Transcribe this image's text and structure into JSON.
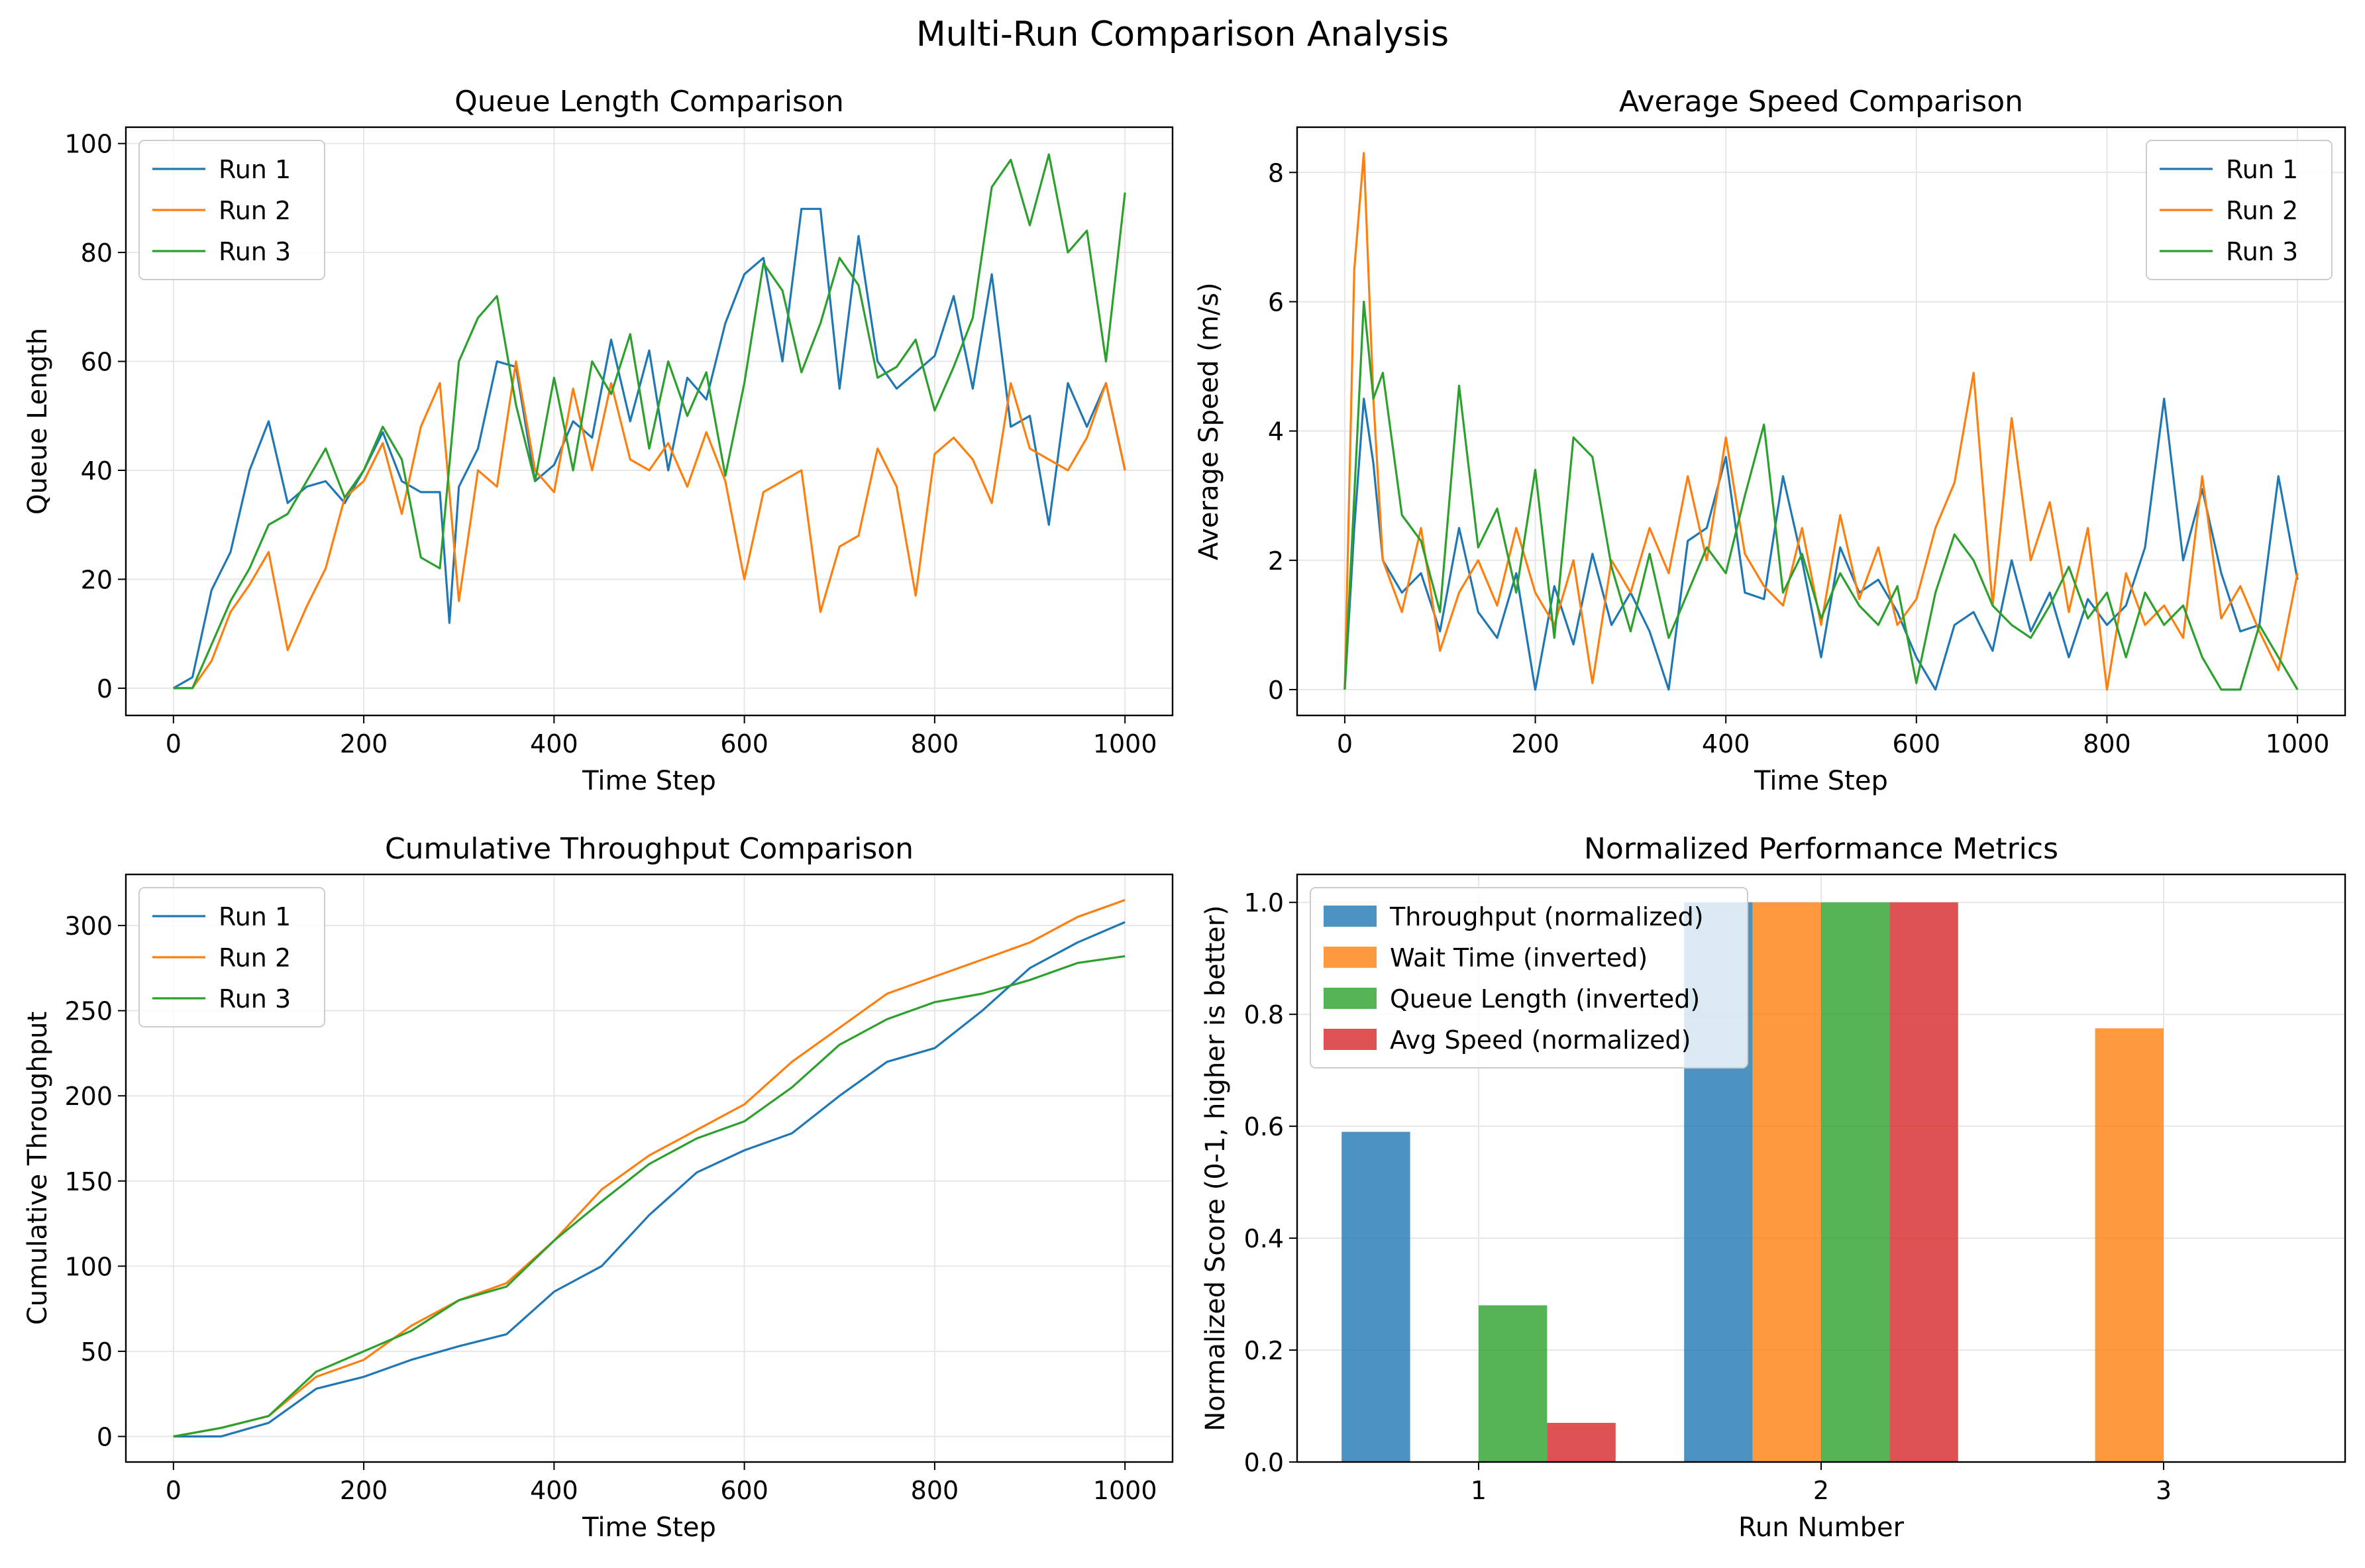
{
  "suptitle": "Multi-Run Comparison Analysis",
  "colors": {
    "run1": "#1f77b4",
    "run2": "#ff7f0e",
    "run3": "#2ca02c",
    "run4": "#d62728",
    "grid": "#e6e6e6"
  },
  "chart_data": [
    {
      "id": "queue",
      "type": "line",
      "title": "Queue Length Comparison",
      "xlabel": "Time Step",
      "ylabel": "Queue Length",
      "xlim": [
        -50,
        1050
      ],
      "ylim": [
        -5,
        103
      ],
      "xticks": [
        0,
        200,
        400,
        600,
        800,
        1000
      ],
      "yticks": [
        0,
        20,
        40,
        60,
        80,
        100
      ],
      "legend": "top-left",
      "grid": true,
      "series": [
        {
          "name": "Run 1",
          "color": "#1f77b4",
          "x": [
            0,
            20,
            40,
            60,
            80,
            100,
            120,
            140,
            160,
            180,
            200,
            220,
            240,
            260,
            280,
            290,
            300,
            320,
            340,
            360,
            380,
            400,
            420,
            440,
            460,
            480,
            500,
            520,
            540,
            560,
            580,
            600,
            620,
            640,
            660,
            680,
            700,
            720,
            740,
            760,
            780,
            800,
            820,
            840,
            860,
            880,
            900,
            920,
            940,
            960,
            980,
            1000
          ],
          "y": [
            0,
            2,
            18,
            25,
            40,
            49,
            34,
            37,
            38,
            34,
            40,
            47,
            38,
            36,
            36,
            12,
            37,
            44,
            60,
            59,
            38,
            41,
            49,
            46,
            64,
            49,
            62,
            40,
            57,
            53,
            67,
            76,
            79,
            60,
            88,
            88,
            55,
            83,
            60,
            55,
            58,
            61,
            72,
            55,
            76,
            48,
            50,
            30,
            56,
            48,
            56,
            40
          ]
        },
        {
          "name": "Run 2",
          "color": "#ff7f0e",
          "x": [
            0,
            20,
            40,
            60,
            80,
            100,
            120,
            140,
            160,
            180,
            200,
            220,
            240,
            260,
            280,
            300,
            320,
            340,
            360,
            380,
            400,
            420,
            440,
            460,
            480,
            500,
            520,
            540,
            560,
            580,
            600,
            620,
            640,
            660,
            680,
            700,
            720,
            740,
            760,
            780,
            800,
            820,
            840,
            860,
            880,
            900,
            920,
            940,
            960,
            980,
            1000
          ],
          "y": [
            0,
            0,
            5,
            14,
            19,
            25,
            7,
            15,
            22,
            35,
            38,
            45,
            32,
            48,
            56,
            16,
            40,
            37,
            60,
            40,
            36,
            55,
            40,
            56,
            42,
            40,
            45,
            37,
            47,
            38,
            20,
            36,
            38,
            40,
            14,
            26,
            28,
            44,
            37,
            17,
            43,
            46,
            42,
            34,
            56,
            44,
            42,
            40,
            46,
            56,
            40
          ]
        },
        {
          "name": "Run 3",
          "color": "#2ca02c",
          "x": [
            0,
            20,
            40,
            60,
            80,
            100,
            120,
            140,
            160,
            180,
            200,
            220,
            240,
            260,
            280,
            300,
            320,
            340,
            360,
            380,
            400,
            420,
            440,
            460,
            480,
            500,
            520,
            540,
            560,
            580,
            600,
            620,
            640,
            660,
            680,
            700,
            720,
            740,
            760,
            780,
            800,
            820,
            840,
            860,
            880,
            900,
            920,
            940,
            960,
            980,
            1000
          ],
          "y": [
            0,
            0,
            8,
            16,
            22,
            30,
            32,
            38,
            44,
            35,
            40,
            48,
            42,
            24,
            22,
            60,
            68,
            72,
            52,
            38,
            57,
            40,
            60,
            54,
            65,
            44,
            60,
            50,
            58,
            39,
            56,
            78,
            73,
            58,
            67,
            79,
            74,
            57,
            59,
            64,
            51,
            59,
            68,
            92,
            97,
            85,
            98,
            80,
            84,
            60,
            91
          ]
        }
      ]
    },
    {
      "id": "speed",
      "type": "line",
      "title": "Average Speed Comparison",
      "xlabel": "Time Step",
      "ylabel": "Average Speed (m/s)",
      "xlim": [
        -50,
        1050
      ],
      "ylim": [
        -0.4,
        8.7
      ],
      "xticks": [
        0,
        200,
        400,
        600,
        800,
        1000
      ],
      "yticks": [
        0,
        2,
        4,
        6,
        8
      ],
      "legend": "top-right",
      "grid": true,
      "series": [
        {
          "name": "Run 1",
          "color": "#1f77b4",
          "x": [
            0,
            10,
            20,
            30,
            40,
            60,
            80,
            100,
            120,
            140,
            160,
            180,
            200,
            220,
            240,
            260,
            280,
            300,
            320,
            340,
            360,
            380,
            400,
            420,
            440,
            460,
            480,
            500,
            520,
            540,
            560,
            580,
            600,
            620,
            640,
            660,
            680,
            700,
            720,
            740,
            760,
            780,
            800,
            820,
            840,
            860,
            880,
            900,
            920,
            940,
            960,
            980,
            1000
          ],
          "y": [
            0,
            2.5,
            4.5,
            3.5,
            2.0,
            1.5,
            1.8,
            0.9,
            2.5,
            1.2,
            0.8,
            1.8,
            0.0,
            1.6,
            0.7,
            2.1,
            1.0,
            1.5,
            0.9,
            0.0,
            2.3,
            2.5,
            3.6,
            1.5,
            1.4,
            3.3,
            2.0,
            0.5,
            2.2,
            1.5,
            1.7,
            1.2,
            0.5,
            0.0,
            1.0,
            1.2,
            0.6,
            2.0,
            0.9,
            1.5,
            0.5,
            1.4,
            1.0,
            1.3,
            2.2,
            4.5,
            2.0,
            3.1,
            1.8,
            0.9,
            1.0,
            3.3,
            1.7
          ]
        },
        {
          "name": "Run 2",
          "color": "#ff7f0e",
          "x": [
            0,
            10,
            20,
            30,
            40,
            60,
            80,
            100,
            120,
            140,
            160,
            180,
            200,
            220,
            240,
            260,
            280,
            300,
            320,
            340,
            360,
            380,
            400,
            420,
            440,
            460,
            480,
            500,
            520,
            540,
            560,
            580,
            600,
            620,
            640,
            660,
            680,
            700,
            720,
            740,
            760,
            780,
            800,
            820,
            840,
            860,
            880,
            900,
            920,
            940,
            960,
            980,
            1000
          ],
          "y": [
            0,
            6.5,
            8.3,
            4.5,
            2.0,
            1.2,
            2.5,
            0.6,
            1.5,
            2.0,
            1.3,
            2.5,
            1.5,
            1.0,
            2.0,
            0.1,
            2.0,
            1.5,
            2.5,
            1.8,
            3.3,
            2.0,
            3.9,
            2.1,
            1.6,
            1.3,
            2.5,
            1.0,
            2.7,
            1.4,
            2.2,
            1.0,
            1.4,
            2.5,
            3.2,
            4.9,
            1.3,
            4.2,
            2.0,
            2.9,
            1.2,
            2.5,
            0.0,
            1.8,
            1.0,
            1.3,
            0.8,
            3.3,
            1.1,
            1.6,
            0.9,
            0.3,
            1.8
          ]
        },
        {
          "name": "Run 3",
          "color": "#2ca02c",
          "x": [
            0,
            10,
            20,
            30,
            40,
            60,
            80,
            100,
            120,
            140,
            160,
            180,
            200,
            220,
            240,
            260,
            280,
            300,
            320,
            340,
            360,
            380,
            400,
            420,
            440,
            460,
            480,
            500,
            520,
            540,
            560,
            580,
            600,
            620,
            640,
            660,
            680,
            700,
            720,
            740,
            760,
            780,
            800,
            820,
            840,
            860,
            880,
            900,
            920,
            940,
            960,
            980,
            1000
          ],
          "y": [
            0,
            3.0,
            6.0,
            4.5,
            4.9,
            2.7,
            2.3,
            1.2,
            4.7,
            2.2,
            2.8,
            1.5,
            3.4,
            0.8,
            3.9,
            3.6,
            1.9,
            0.9,
            2.1,
            0.8,
            1.5,
            2.2,
            1.8,
            3.0,
            4.1,
            1.5,
            2.1,
            1.1,
            1.8,
            1.3,
            1.0,
            1.6,
            0.1,
            1.5,
            2.4,
            2.0,
            1.3,
            1.0,
            0.8,
            1.3,
            1.9,
            1.1,
            1.5,
            0.5,
            1.5,
            1.0,
            1.3,
            0.5,
            0.0,
            0.0,
            1.0,
            0.5,
            0.0
          ]
        }
      ]
    },
    {
      "id": "throughput",
      "type": "line",
      "title": "Cumulative Throughput Comparison",
      "xlabel": "Time Step",
      "ylabel": "Cumulative Throughput",
      "xlim": [
        -50,
        1050
      ],
      "ylim": [
        -15,
        330
      ],
      "xticks": [
        0,
        200,
        400,
        600,
        800,
        1000
      ],
      "yticks": [
        0,
        50,
        100,
        150,
        200,
        250,
        300
      ],
      "legend": "top-left",
      "grid": true,
      "series": [
        {
          "name": "Run 1",
          "color": "#1f77b4",
          "x": [
            0,
            50,
            100,
            150,
            200,
            250,
            300,
            350,
            400,
            450,
            500,
            550,
            600,
            650,
            700,
            750,
            800,
            850,
            900,
            950,
            1000
          ],
          "y": [
            0,
            0,
            8,
            28,
            35,
            45,
            53,
            60,
            85,
            100,
            130,
            155,
            168,
            178,
            200,
            220,
            228,
            250,
            275,
            290,
            302
          ]
        },
        {
          "name": "Run 2",
          "color": "#ff7f0e",
          "x": [
            0,
            50,
            100,
            150,
            200,
            250,
            300,
            350,
            400,
            450,
            500,
            550,
            600,
            650,
            700,
            750,
            800,
            850,
            900,
            950,
            1000
          ],
          "y": [
            0,
            5,
            12,
            35,
            45,
            65,
            80,
            90,
            115,
            145,
            165,
            180,
            195,
            220,
            240,
            260,
            270,
            280,
            290,
            305,
            315
          ]
        },
        {
          "name": "Run 3",
          "color": "#2ca02c",
          "x": [
            0,
            50,
            100,
            150,
            200,
            250,
            300,
            350,
            400,
            450,
            500,
            550,
            600,
            650,
            700,
            750,
            800,
            850,
            900,
            950,
            1000
          ],
          "y": [
            0,
            5,
            12,
            38,
            50,
            62,
            80,
            88,
            115,
            138,
            160,
            175,
            185,
            205,
            230,
            245,
            255,
            260,
            268,
            278,
            282
          ]
        }
      ]
    },
    {
      "id": "metrics",
      "type": "bar",
      "title": "Normalized Performance Metrics",
      "xlabel": "Run Number",
      "ylabel": "Normalized Score (0-1, higher is better)",
      "categories": [
        "1",
        "2",
        "3"
      ],
      "ylim": [
        0,
        1.05
      ],
      "yticks": [
        0.0,
        0.2,
        0.4,
        0.6,
        0.8,
        1.0
      ],
      "ytick_labels": [
        "0.0",
        "0.2",
        "0.4",
        "0.6",
        "0.8",
        "1.0"
      ],
      "legend": "top-left",
      "grid": true,
      "series": [
        {
          "name": "Throughput (normalized)",
          "color": "#1f77b4",
          "values": [
            0.59,
            1.0,
            0.0
          ]
        },
        {
          "name": "Wait Time (inverted)",
          "color": "#ff7f0e",
          "values": [
            0.0,
            1.0,
            0.775
          ]
        },
        {
          "name": "Queue Length (inverted)",
          "color": "#2ca02c",
          "values": [
            0.28,
            1.0,
            0.0
          ]
        },
        {
          "name": "Avg Speed (normalized)",
          "color": "#d62728",
          "values": [
            0.07,
            1.0,
            0.0
          ]
        }
      ]
    }
  ]
}
